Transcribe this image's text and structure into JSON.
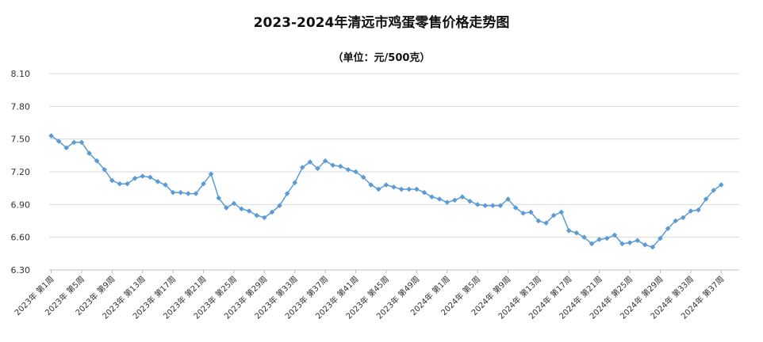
{
  "chart_data": {
    "type": "line",
    "title": "2023-2024年清远市鸡蛋零售价格走势图",
    "subtitle": "（单位：元/500克）",
    "xlabel": "",
    "ylabel": "",
    "ylim": [
      6.3,
      8.1
    ],
    "y_ticks": [
      "6.30",
      "6.60",
      "6.90",
      "7.20",
      "7.50",
      "7.80",
      "8.10"
    ],
    "grid": true,
    "legend": "none",
    "colors": {
      "series": "#5b9bd5",
      "grid": "#d9d9d9",
      "axis": "#bfbfbf"
    },
    "x_tick_labels": [
      "2023年 第1周",
      "2023年 第5周",
      "2023年 第9周",
      "2023年 第13周",
      "2023年 第17周",
      "2023年 第21周",
      "2023年 第25周",
      "2023年 第29周",
      "2023年 第33周",
      "2023年 第37周",
      "2023年 第41周",
      "2023年 第45周",
      "2023年 第49周",
      "2024年 第1周",
      "2024年 第5周",
      "2024年 第9周",
      "2024年 第13周",
      "2024年 第17周",
      "2024年 第21周",
      "2024年 第25周",
      "2024年 第29周",
      "2024年 第33周",
      "2024年 第37周"
    ],
    "series": [
      {
        "values": [
          7.53,
          7.48,
          7.42,
          7.47,
          7.47,
          7.37,
          7.3,
          7.22,
          7.12,
          7.09,
          7.09,
          7.14,
          7.16,
          7.15,
          7.11,
          7.08,
          7.01,
          7.01,
          7.0,
          7.0,
          7.09,
          7.18,
          6.96,
          6.87,
          6.91,
          6.86,
          6.84,
          6.8,
          6.78,
          6.83,
          6.89,
          7.0,
          7.1,
          7.24,
          7.29,
          7.23,
          7.3,
          7.26,
          7.25,
          7.22,
          7.2,
          7.15,
          7.08,
          7.04,
          7.08,
          7.06,
          7.04,
          7.04,
          7.04,
          7.01,
          6.97,
          6.95,
          6.92,
          6.94,
          6.97,
          6.93,
          6.9,
          6.89,
          6.89,
          6.89,
          6.95,
          6.87,
          6.82,
          6.83,
          6.75,
          6.73,
          6.8,
          6.83,
          6.66,
          6.64,
          6.6,
          6.54,
          6.58,
          6.59,
          6.62,
          6.54,
          6.55,
          6.57,
          6.53,
          6.51,
          6.59,
          6.68,
          6.75,
          6.78,
          6.84,
          6.85,
          6.95,
          7.03,
          7.08
        ]
      }
    ]
  }
}
